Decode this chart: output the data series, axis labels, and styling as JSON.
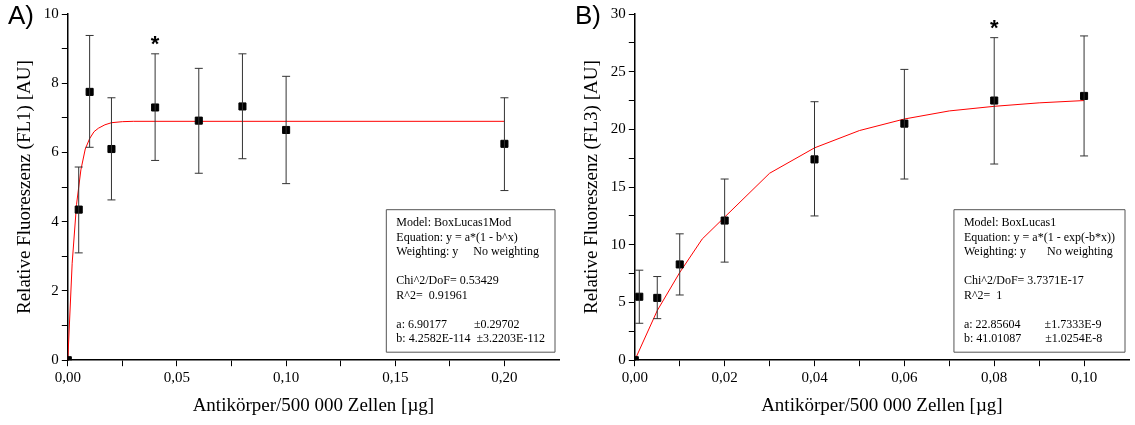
{
  "chart_data": [
    {
      "type": "scatter",
      "title": "A)",
      "xlabel": "Antikörper/500 000 Zellen [µg]",
      "ylabel": "Relative Fluoreszenz (FL1) [AU]",
      "xlim": [
        0,
        0.225
      ],
      "xticks": [
        {
          "value": 0,
          "label": "0,00"
        },
        {
          "value": 0.025,
          "label": null
        },
        {
          "value": 0.05,
          "label": "0,05"
        },
        {
          "value": 0.075,
          "label": null
        },
        {
          "value": 0.1,
          "label": "0,10"
        },
        {
          "value": 0.125,
          "label": null
        },
        {
          "value": 0.15,
          "label": "0,15"
        },
        {
          "value": 0.175,
          "label": null
        },
        {
          "value": 0.2,
          "label": "0,20"
        }
      ],
      "ylim": [
        0,
        10
      ],
      "yticks": [
        0,
        {
          "value": 1,
          "label": null
        },
        2,
        {
          "value": 3,
          "label": null
        },
        4,
        {
          "value": 5,
          "label": null
        },
        6,
        {
          "value": 7,
          "label": null
        },
        8,
        {
          "value": 9,
          "label": null
        },
        10
      ],
      "grid": false,
      "legend": false,
      "marker": "square",
      "series": [
        {
          "color": "#000000",
          "x": [
            0,
            0.005,
            0.01,
            0.02,
            0.04,
            0.06,
            0.08,
            0.1,
            0.2
          ],
          "values": [
            0,
            4.35,
            7.75,
            6.1,
            7.3,
            6.92,
            7.33,
            6.65,
            6.25
          ],
          "errors": [
            null,
            [
              3.1,
              5.58
            ],
            [
              6.15,
              9.38
            ],
            [
              4.63,
              7.58
            ],
            [
              5.77,
              8.85
            ],
            [
              5.4,
              8.43
            ],
            [
              5.82,
              8.85
            ],
            [
              5.1,
              8.2
            ],
            [
              4.9,
              7.58
            ]
          ]
        },
        {
          "type": "line",
          "color": "#ff0000",
          "marker": "none",
          "x": [
            0,
            0.002,
            0.004,
            0.006,
            0.008,
            0.01,
            0.012,
            0.014,
            0.017,
            0.02,
            0.025,
            0.03,
            0.2
          ],
          "values": [
            0,
            2.8,
            4.5,
            5.5,
            6.1,
            6.4,
            6.6,
            6.7,
            6.8,
            6.86,
            6.89,
            6.9,
            6.9
          ]
        }
      ],
      "annotations": [
        {
          "text": "*",
          "x": 0.04,
          "y": 8.85
        },
        "Model: BoxLucas1Mod",
        "Equation: y = a*(1 - b^x)",
        "Weighting: y     No weighting",
        "Chi^2/DoF= 0.53429",
        "R^2=  0.91961",
        "a: 6.90177         ±0.29702",
        "b: 4.2582E-114  ±3.2203E-112"
      ]
    },
    {
      "type": "scatter",
      "title": "B)",
      "xlabel": "Antikörper/500 000 Zellen [µg]",
      "ylabel": "Relative Fluoreszenz (FL3) [AU]",
      "xlim": [
        0,
        0.11
      ],
      "xticks": [
        {
          "value": 0,
          "label": "0,00"
        },
        {
          "value": 0.01,
          "label": null
        },
        {
          "value": 0.02,
          "label": "0,02"
        },
        {
          "value": 0.03,
          "label": null
        },
        {
          "value": 0.04,
          "label": "0,04"
        },
        {
          "value": 0.05,
          "label": null
        },
        {
          "value": 0.06,
          "label": "0,06"
        },
        {
          "value": 0.07,
          "label": null
        },
        {
          "value": 0.08,
          "label": "0,08"
        },
        {
          "value": 0.09,
          "label": null
        },
        {
          "value": 0.1,
          "label": "0,10"
        }
      ],
      "ylim": [
        0,
        30
      ],
      "yticks": [
        0,
        {
          "value": 2.5,
          "label": null
        },
        5,
        {
          "value": 7.5,
          "label": null
        },
        10,
        {
          "value": 12.5,
          "label": null
        },
        15,
        {
          "value": 17.5,
          "label": null
        },
        20,
        {
          "value": 22.5,
          "label": null
        },
        25,
        {
          "value": 27.5,
          "label": null
        },
        30
      ],
      "grid": false,
      "legend": false,
      "marker": "square",
      "series": [
        {
          "color": "#000000",
          "x": [
            0,
            0.001,
            0.005,
            0.01,
            0.02,
            0.04,
            0.06,
            0.08,
            0.1
          ],
          "values": [
            0,
            5.5,
            5.4,
            8.3,
            12.1,
            17.4,
            20.5,
            22.5,
            22.9
          ],
          "errors": [
            null,
            [
              3.2,
              7.8
            ],
            [
              3.6,
              7.25
            ],
            [
              5.65,
              10.95
            ],
            [
              8.5,
              15.7
            ],
            [
              12.5,
              22.4
            ],
            [
              15.7,
              25.2
            ],
            [
              17.0,
              27.95
            ],
            [
              17.7,
              28.1
            ]
          ]
        },
        {
          "type": "line",
          "color": "#ff0000",
          "marker": "none",
          "x": [
            0,
            0.005,
            0.01,
            0.015,
            0.02,
            0.03,
            0.04,
            0.05,
            0.06,
            0.07,
            0.08,
            0.09,
            0.1
          ],
          "values": [
            0,
            4.3,
            7.6,
            10.5,
            12.4,
            16.2,
            18.4,
            19.9,
            20.9,
            21.6,
            22.0,
            22.3,
            22.5
          ]
        }
      ],
      "annotations": [
        {
          "text": "*",
          "x": 0.08,
          "y": 27.95
        },
        "Model: BoxLucas1",
        "Equation: y = a*(1 - exp(-b*x))",
        "Weighting: y       No weighting",
        "Chi^2/DoF= 3.7371E-17",
        "R^2=  1",
        "a: 22.85604        ±1.7333E-9",
        "b: 41.01087        ±1.0254E-8"
      ]
    }
  ]
}
